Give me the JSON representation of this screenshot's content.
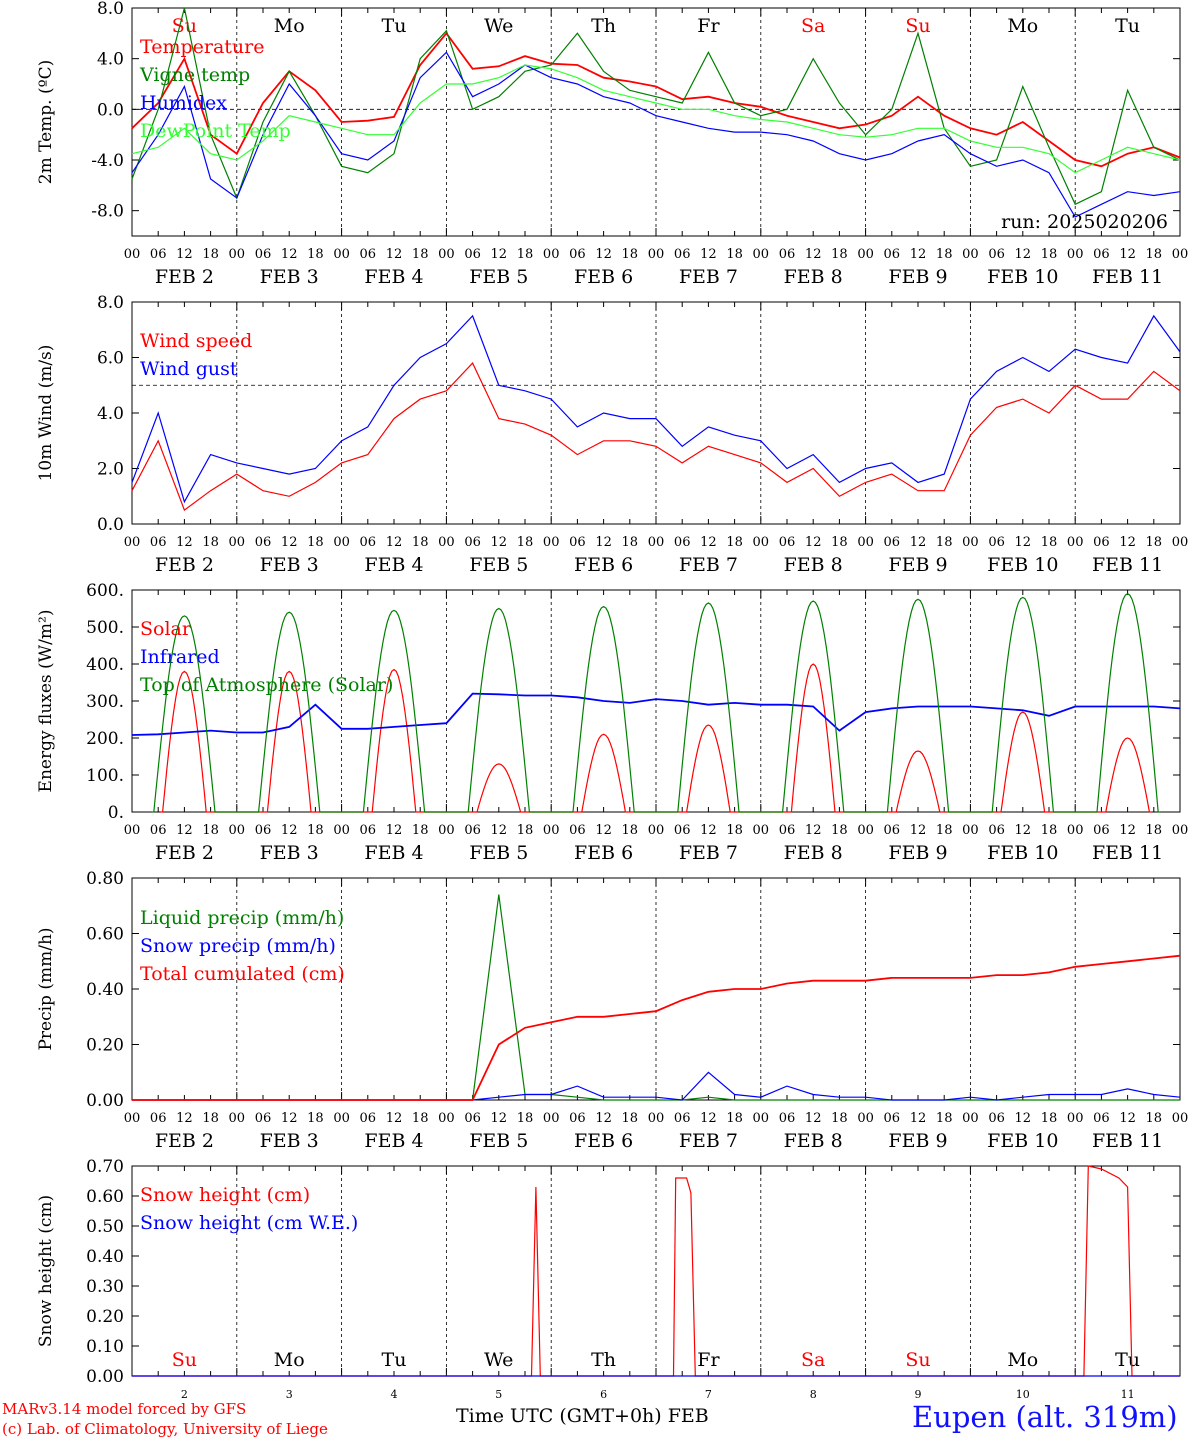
{
  "footer": {
    "model_line": "MARv3.14 model forced by GFS",
    "copyright_line": "(c) Lab. of Climatology, University of Liege",
    "time_label": "Time UTC (GMT+0h) FEB",
    "station": "Eupen (alt. 319m)"
  },
  "colors": {
    "red": "#ff0000",
    "green": "#008000",
    "blue": "#0000ff",
    "light_green": "#33ff33",
    "weekend": "#ff0000"
  },
  "days": {
    "weekday_labels": [
      "Su",
      "Mo",
      "Tu",
      "We",
      "Th",
      "Fr",
      "Sa",
      "Su",
      "Mo",
      "Tu"
    ],
    "weekend_flags": [
      true,
      false,
      false,
      false,
      false,
      false,
      true,
      true,
      false,
      false
    ],
    "date_labels": [
      "FEB  2",
      "FEB  3",
      "FEB  4",
      "FEB  5",
      "FEB  6",
      "FEB  7",
      "FEB  8",
      "FEB  9",
      "FEB 10",
      "FEB 11"
    ],
    "day_numbers": [
      "2",
      "3",
      "4",
      "5",
      "6",
      "7",
      "8",
      "9",
      "10",
      "11"
    ],
    "hour_ticks": [
      "00",
      "06",
      "12",
      "18"
    ],
    "final_tick": "00"
  },
  "chart_data": [
    {
      "type": "line",
      "ylabel": "2m Temp. (ºC)",
      "ylim": [
        -10,
        8
      ],
      "yticks": [
        "8.0",
        "4.0",
        "0.0",
        "-4.0",
        "-8.0"
      ],
      "ytick_values": [
        8,
        4,
        0,
        -4,
        -8
      ],
      "ref_line": 0,
      "annotation": "run: 2025020206",
      "x_hours": [
        0,
        6,
        12,
        18,
        24,
        30,
        36,
        42,
        48,
        54,
        60,
        66,
        72,
        78,
        84,
        90,
        96,
        102,
        108,
        114,
        120,
        126,
        132,
        138,
        144,
        150,
        156,
        162,
        168,
        174,
        180,
        186,
        192,
        198,
        204,
        210,
        216,
        222,
        228,
        234,
        240
      ],
      "series": [
        {
          "name": "Temperature",
          "color": "#ff0000",
          "values": [
            -1.5,
            0.5,
            4.0,
            -2.0,
            -3.5,
            0.5,
            3.0,
            1.5,
            -1.0,
            -0.9,
            -0.6,
            3.5,
            6.0,
            3.2,
            3.4,
            4.2,
            3.6,
            3.5,
            2.5,
            2.2,
            1.8,
            0.8,
            1.0,
            0.5,
            0.2,
            -0.5,
            -1.0,
            -1.5,
            -1.2,
            -0.5,
            1.0,
            -0.5,
            -1.5,
            -2.0,
            -1.0,
            -2.5,
            -4.0,
            -4.5,
            -3.5,
            -3.0,
            -3.8
          ]
        },
        {
          "name": "Vigne temp",
          "color": "#008000",
          "values": [
            -5.5,
            0.0,
            8.0,
            -2.0,
            -7.0,
            -1.0,
            3.0,
            -0.5,
            -4.5,
            -5.0,
            -3.5,
            4.0,
            6.2,
            0.0,
            1.0,
            3.0,
            3.5,
            6.0,
            3.0,
            1.5,
            1.0,
            0.5,
            4.5,
            0.5,
            -0.5,
            0.0,
            4.0,
            0.5,
            -2.0,
            0.0,
            6.0,
            -1.5,
            -4.5,
            -4.0,
            1.8,
            -3.0,
            -7.5,
            -6.5,
            1.5,
            -3.0,
            -4.0
          ]
        },
        {
          "name": "Humidex",
          "color": "#0000ff",
          "values": [
            -5.0,
            -2.0,
            1.8,
            -5.5,
            -7.0,
            -2.0,
            2.0,
            -0.5,
            -3.5,
            -4.0,
            -2.5,
            2.5,
            4.5,
            1.0,
            2.0,
            3.5,
            2.5,
            2.0,
            1.0,
            0.5,
            -0.5,
            -1.0,
            -1.5,
            -1.8,
            -1.8,
            -2.0,
            -2.5,
            -3.5,
            -4.0,
            -3.5,
            -2.5,
            -2.0,
            -3.5,
            -4.5,
            -4.0,
            -5.0,
            -8.5,
            -7.5,
            -6.5,
            -6.8,
            -6.5
          ]
        },
        {
          "name": "DewPoint Temp",
          "color": "#33ff33",
          "values": [
            -3.5,
            -3.0,
            -1.5,
            -3.5,
            -4.0,
            -2.5,
            -0.5,
            -1.0,
            -1.5,
            -2.0,
            -2.0,
            0.5,
            2.0,
            2.0,
            2.5,
            3.5,
            3.2,
            2.5,
            1.5,
            1.0,
            0.5,
            0.0,
            0.0,
            -0.5,
            -0.8,
            -1.0,
            -1.5,
            -2.0,
            -2.2,
            -2.0,
            -1.5,
            -1.5,
            -2.5,
            -3.0,
            -3.0,
            -3.5,
            -5.0,
            -4.0,
            -3.0,
            -3.5,
            -4.0
          ]
        }
      ]
    },
    {
      "type": "line",
      "ylabel": "10m Wind (m/s)",
      "ylim": [
        0,
        8
      ],
      "yticks": [
        "8.0",
        "6.0",
        "4.0",
        "2.0",
        "0.0"
      ],
      "ytick_values": [
        8,
        6,
        4,
        2,
        0
      ],
      "ref_line": 5,
      "x_hours": [
        0,
        6,
        12,
        18,
        24,
        30,
        36,
        42,
        48,
        54,
        60,
        66,
        72,
        78,
        84,
        90,
        96,
        102,
        108,
        114,
        120,
        126,
        132,
        138,
        144,
        150,
        156,
        162,
        168,
        174,
        180,
        186,
        192,
        198,
        204,
        210,
        216,
        222,
        228,
        234,
        240
      ],
      "series": [
        {
          "name": "Wind speed",
          "color": "#ff0000",
          "values": [
            1.2,
            3.0,
            0.5,
            1.2,
            1.8,
            1.2,
            1.0,
            1.5,
            2.2,
            2.5,
            3.8,
            4.5,
            4.8,
            5.8,
            3.8,
            3.6,
            3.2,
            2.5,
            3.0,
            3.0,
            2.8,
            2.2,
            2.8,
            2.5,
            2.2,
            1.5,
            2.0,
            1.0,
            1.5,
            1.8,
            1.2,
            1.2,
            3.2,
            4.2,
            4.5,
            4.0,
            5.0,
            4.5,
            4.5,
            5.5,
            4.8
          ]
        },
        {
          "name": "Wind gust",
          "color": "#0000ff",
          "values": [
            1.5,
            4.0,
            0.8,
            2.5,
            2.2,
            2.0,
            1.8,
            2.0,
            3.0,
            3.5,
            5.0,
            6.0,
            6.5,
            7.5,
            5.0,
            4.8,
            4.5,
            3.5,
            4.0,
            3.8,
            3.8,
            2.8,
            3.5,
            3.2,
            3.0,
            2.0,
            2.5,
            1.5,
            2.0,
            2.2,
            1.5,
            1.8,
            4.5,
            5.5,
            6.0,
            5.5,
            6.3,
            6.0,
            5.8,
            7.5,
            6.2
          ]
        }
      ]
    },
    {
      "type": "line",
      "ylabel": "Energy fluxes (W/m²)",
      "ylim": [
        0,
        600
      ],
      "yticks": [
        "600.",
        "500.",
        "400.",
        "300.",
        "200.",
        "100.",
        "0."
      ],
      "ytick_values": [
        600,
        500,
        400,
        300,
        200,
        100,
        0
      ],
      "solar_peaks": [
        380,
        380,
        385,
        130,
        210,
        235,
        400,
        165,
        270,
        200
      ],
      "toa_peaks": [
        530,
        540,
        545,
        550,
        555,
        565,
        570,
        575,
        580,
        590
      ],
      "x_hours": [
        0,
        6,
        12,
        18,
        24,
        30,
        36,
        42,
        48,
        54,
        60,
        66,
        72,
        78,
        84,
        90,
        96,
        102,
        108,
        114,
        120,
        126,
        132,
        138,
        144,
        150,
        156,
        162,
        168,
        174,
        180,
        186,
        192,
        198,
        204,
        210,
        216,
        222,
        228,
        234,
        240
      ],
      "series": [
        {
          "name": "Solar",
          "color": "#ff0000"
        },
        {
          "name": "Infrared",
          "color": "#0000ff",
          "values": [
            208,
            210,
            215,
            220,
            215,
            215,
            230,
            290,
            225,
            225,
            230,
            235,
            240,
            320,
            318,
            315,
            315,
            310,
            300,
            295,
            305,
            300,
            290,
            295,
            290,
            290,
            285,
            220,
            270,
            280,
            285,
            285,
            285,
            280,
            275,
            260,
            285,
            285,
            285,
            285,
            280
          ]
        },
        {
          "name": "Top of Atmosphere (Solar)",
          "color": "#008000"
        }
      ]
    },
    {
      "type": "line",
      "ylabel": "Precip (mm/h)",
      "ylim": [
        0,
        0.8
      ],
      "yticks": [
        "0.80",
        "0.60",
        "0.40",
        "0.20",
        "0.00"
      ],
      "ytick_values": [
        0.8,
        0.6,
        0.4,
        0.2,
        0
      ],
      "x_hours": [
        0,
        6,
        12,
        18,
        24,
        30,
        36,
        42,
        48,
        54,
        60,
        66,
        72,
        78,
        84,
        90,
        96,
        102,
        108,
        114,
        120,
        126,
        132,
        138,
        144,
        150,
        156,
        162,
        168,
        174,
        180,
        186,
        192,
        198,
        204,
        210,
        216,
        222,
        228,
        234,
        240
      ],
      "series": [
        {
          "name": "Liquid precip (mm/h)",
          "color": "#008000",
          "values": [
            0,
            0,
            0,
            0,
            0,
            0,
            0,
            0,
            0,
            0,
            0,
            0,
            0,
            0,
            0.74,
            0.02,
            0.02,
            0.01,
            0,
            0,
            0,
            0,
            0.01,
            0,
            0,
            0,
            0,
            0,
            0,
            0,
            0,
            0,
            0,
            0,
            0,
            0,
            0,
            0,
            0,
            0,
            0
          ]
        },
        {
          "name": "Snow precip (mm/h)",
          "color": "#0000ff",
          "values": [
            0,
            0,
            0,
            0,
            0,
            0,
            0,
            0,
            0,
            0,
            0,
            0,
            0,
            0,
            0.01,
            0.02,
            0.02,
            0.05,
            0.01,
            0.01,
            0.01,
            0.0,
            0.1,
            0.02,
            0.01,
            0.05,
            0.02,
            0.01,
            0.01,
            0.0,
            0.0,
            0.0,
            0.01,
            0.0,
            0.01,
            0.02,
            0.02,
            0.02,
            0.04,
            0.02,
            0.01
          ]
        },
        {
          "name": "Total cumulated (cm)",
          "color": "#ff0000",
          "values": [
            0,
            0,
            0,
            0,
            0,
            0,
            0,
            0,
            0,
            0,
            0,
            0,
            0,
            0,
            0.2,
            0.26,
            0.28,
            0.3,
            0.3,
            0.31,
            0.32,
            0.36,
            0.39,
            0.4,
            0.4,
            0.42,
            0.43,
            0.43,
            0.43,
            0.44,
            0.44,
            0.44,
            0.44,
            0.45,
            0.45,
            0.46,
            0.48,
            0.49,
            0.5,
            0.51,
            0.52
          ]
        }
      ]
    },
    {
      "type": "line",
      "ylabel": "Snow height (cm)",
      "ylim": [
        0,
        0.7
      ],
      "yticks": [
        "0.70",
        "0.60",
        "0.50",
        "0.40",
        "0.30",
        "0.20",
        "0.10",
        "0.00"
      ],
      "ytick_values": [
        0.7,
        0.6,
        0.5,
        0.4,
        0.3,
        0.2,
        0.1,
        0
      ],
      "series": [
        {
          "name": "Snow height (cm)",
          "color": "#ff0000",
          "points": [
            [
              0,
              0
            ],
            [
              91.5,
              0
            ],
            [
              92.5,
              0.63
            ],
            [
              93.5,
              0
            ],
            [
              124,
              0
            ],
            [
              124.5,
              0.66
            ],
            [
              127,
              0.66
            ],
            [
              128,
              0.61
            ],
            [
              129,
              0
            ],
            [
              218,
              0
            ],
            [
              219,
              0.7
            ],
            [
              222,
              0.69
            ],
            [
              226,
              0.66
            ],
            [
              228,
              0.63
            ],
            [
              229,
              0
            ],
            [
              240,
              0
            ]
          ]
        },
        {
          "name": "Snow height (cm W.E.)",
          "color": "#0000ff",
          "points": [
            [
              0,
              0
            ],
            [
              240,
              0
            ]
          ]
        }
      ]
    }
  ]
}
